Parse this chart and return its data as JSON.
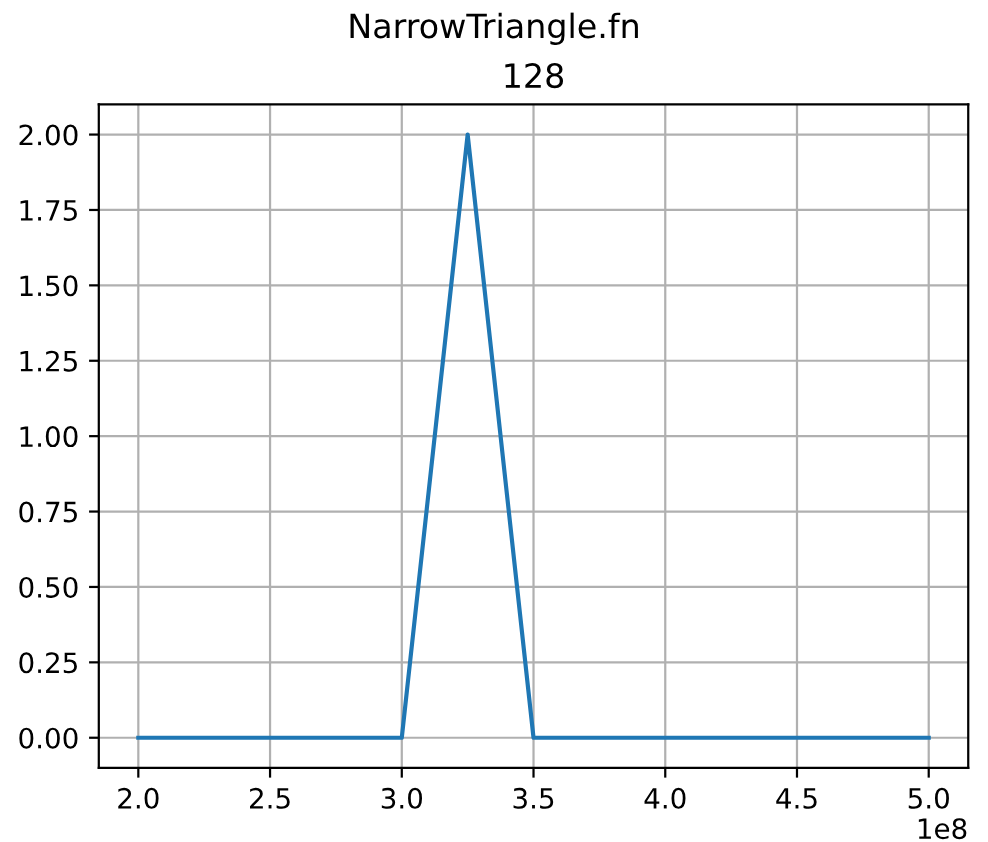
{
  "chart_data": {
    "type": "line",
    "title": "NarrowTriangle.fn",
    "subtitle": "128",
    "x": [
      2.0,
      3.0,
      3.25,
      3.5,
      5.0
    ],
    "series": [
      {
        "color": "#1f77b4",
        "values": [
          0,
          0,
          2,
          0,
          0
        ]
      }
    ],
    "xlim": [
      1.85,
      5.15
    ],
    "xticks": [
      {
        "value": 2,
        "label": "2.0"
      },
      {
        "value": 2.5,
        "label": "2.5"
      },
      {
        "value": 3,
        "label": "3.0"
      },
      {
        "value": 3.5,
        "label": "3.5"
      },
      {
        "value": 4,
        "label": "4.0"
      },
      {
        "value": 4.5,
        "label": "4.5"
      },
      {
        "value": 5,
        "label": "5.0"
      }
    ],
    "ylim": [
      -0.1,
      2.1
    ],
    "yticks": [
      {
        "value": 0,
        "label": "0.00"
      },
      {
        "value": 0.25,
        "label": "0.25"
      },
      {
        "value": 0.5,
        "label": "0.50"
      },
      {
        "value": 0.75,
        "label": "0.75"
      },
      {
        "value": 1,
        "label": "1.00"
      },
      {
        "value": 1.25,
        "label": "1.25"
      },
      {
        "value": 1.5,
        "label": "1.50"
      },
      {
        "value": 1.75,
        "label": "1.75"
      },
      {
        "value": 2,
        "label": "2.00"
      }
    ],
    "grid": true,
    "annotations": [
      "1e8"
    ]
  }
}
